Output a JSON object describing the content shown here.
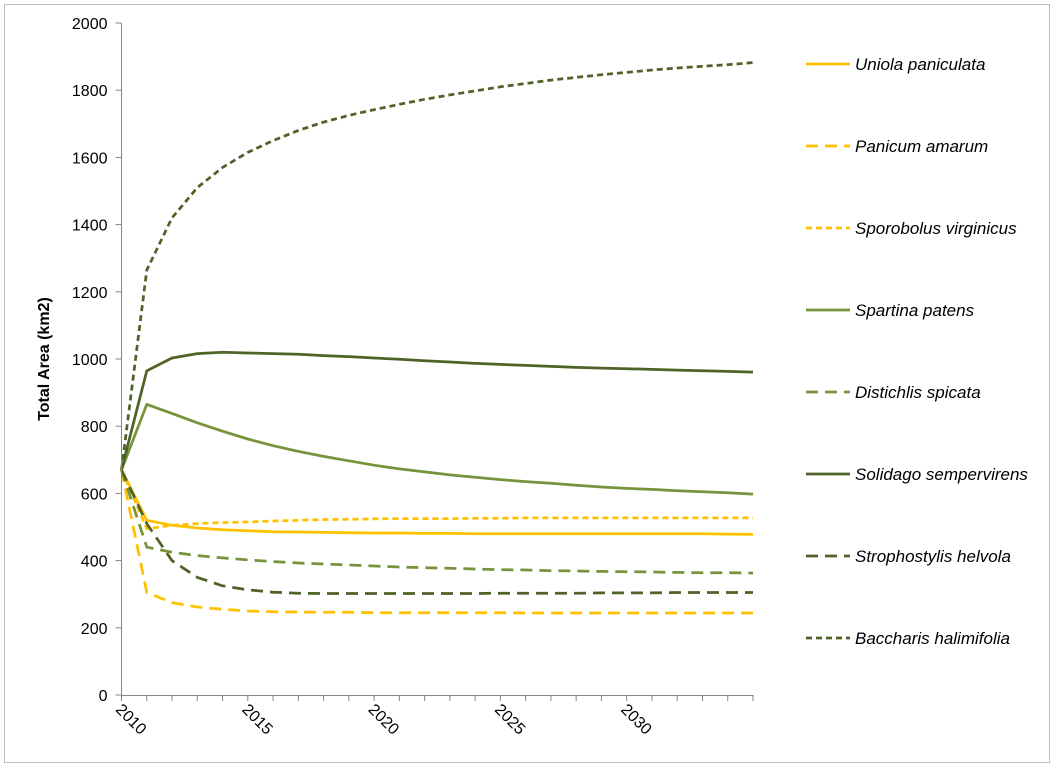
{
  "chart_data": {
    "type": "line",
    "ylabel": "Total Area (km2)",
    "xlabel": "",
    "title": "",
    "xlim": [
      2010,
      2035
    ],
    "ylim": [
      0,
      2000
    ],
    "x_ticks": [
      2010,
      2015,
      2020,
      2025,
      2030
    ],
    "y_ticks": [
      0,
      200,
      400,
      600,
      800,
      1000,
      1200,
      1400,
      1600,
      1800,
      2000
    ],
    "grid": false,
    "legend_position": "right",
    "x": [
      2010,
      2011,
      2012,
      2013,
      2014,
      2015,
      2016,
      2017,
      2018,
      2019,
      2020,
      2021,
      2022,
      2023,
      2024,
      2025,
      2026,
      2027,
      2028,
      2029,
      2030,
      2031,
      2032,
      2033,
      2034,
      2035
    ],
    "series": [
      {
        "name": "Uniola paniculata",
        "color": "#FFC000",
        "dash": "solid",
        "values": [
          670,
          520,
          505,
          497,
          492,
          489,
          486,
          485,
          484,
          483,
          482,
          482,
          481,
          481,
          480,
          480,
          480,
          480,
          480,
          480,
          480,
          480,
          480,
          480,
          479,
          478
        ]
      },
      {
        "name": "Panicum amarum",
        "color": "#FFC000",
        "dash": "long-dash",
        "values": [
          670,
          305,
          275,
          262,
          255,
          250,
          248,
          247,
          246,
          246,
          245,
          245,
          245,
          245,
          245,
          245,
          244,
          244,
          244,
          244,
          244,
          244,
          244,
          244,
          244,
          244
        ]
      },
      {
        "name": "Sporobolus virginicus",
        "color": "#FFC000",
        "dash": "short-dash",
        "values": [
          670,
          495,
          505,
          510,
          513,
          515,
          518,
          520,
          522,
          523,
          524,
          525,
          525,
          525,
          526,
          526,
          527,
          527,
          527,
          527,
          527,
          527,
          527,
          527,
          527,
          527
        ]
      },
      {
        "name": "Spartina patens",
        "color": "#77933C",
        "dash": "solid",
        "values": [
          670,
          865,
          838,
          810,
          785,
          762,
          742,
          725,
          710,
          697,
          684,
          673,
          664,
          655,
          648,
          641,
          635,
          630,
          624,
          619,
          615,
          612,
          608,
          605,
          602,
          598
        ]
      },
      {
        "name": "Distichlis spicata",
        "color": "#77933C",
        "dash": "long-dash",
        "values": [
          670,
          440,
          425,
          415,
          408,
          402,
          397,
          393,
          390,
          387,
          384,
          381,
          379,
          377,
          375,
          373,
          372,
          370,
          369,
          368,
          367,
          366,
          365,
          364,
          364,
          363
        ]
      },
      {
        "name": "Solidago sempervirens",
        "color": "#4F6228",
        "dash": "solid",
        "values": [
          670,
          965,
          1003,
          1016,
          1020,
          1018,
          1016,
          1014,
          1010,
          1007,
          1003,
          999,
          995,
          991,
          987,
          984,
          981,
          978,
          975,
          973,
          971,
          969,
          967,
          965,
          963,
          961
        ]
      },
      {
        "name": "Strophostylis helvola",
        "color": "#4F6228",
        "dash": "long-dash",
        "values": [
          670,
          510,
          400,
          350,
          325,
          313,
          306,
          303,
          302,
          302,
          302,
          302,
          302,
          302,
          302,
          303,
          303,
          303,
          303,
          304,
          304,
          304,
          305,
          305,
          305,
          305
        ]
      },
      {
        "name": "Baccharis halimifolia",
        "color": "#4F6228",
        "dash": "short-dash",
        "values": [
          670,
          1265,
          1420,
          1510,
          1570,
          1615,
          1650,
          1680,
          1705,
          1725,
          1742,
          1758,
          1773,
          1786,
          1798,
          1810,
          1820,
          1830,
          1838,
          1846,
          1853,
          1860,
          1866,
          1871,
          1876,
          1882
        ]
      }
    ]
  }
}
